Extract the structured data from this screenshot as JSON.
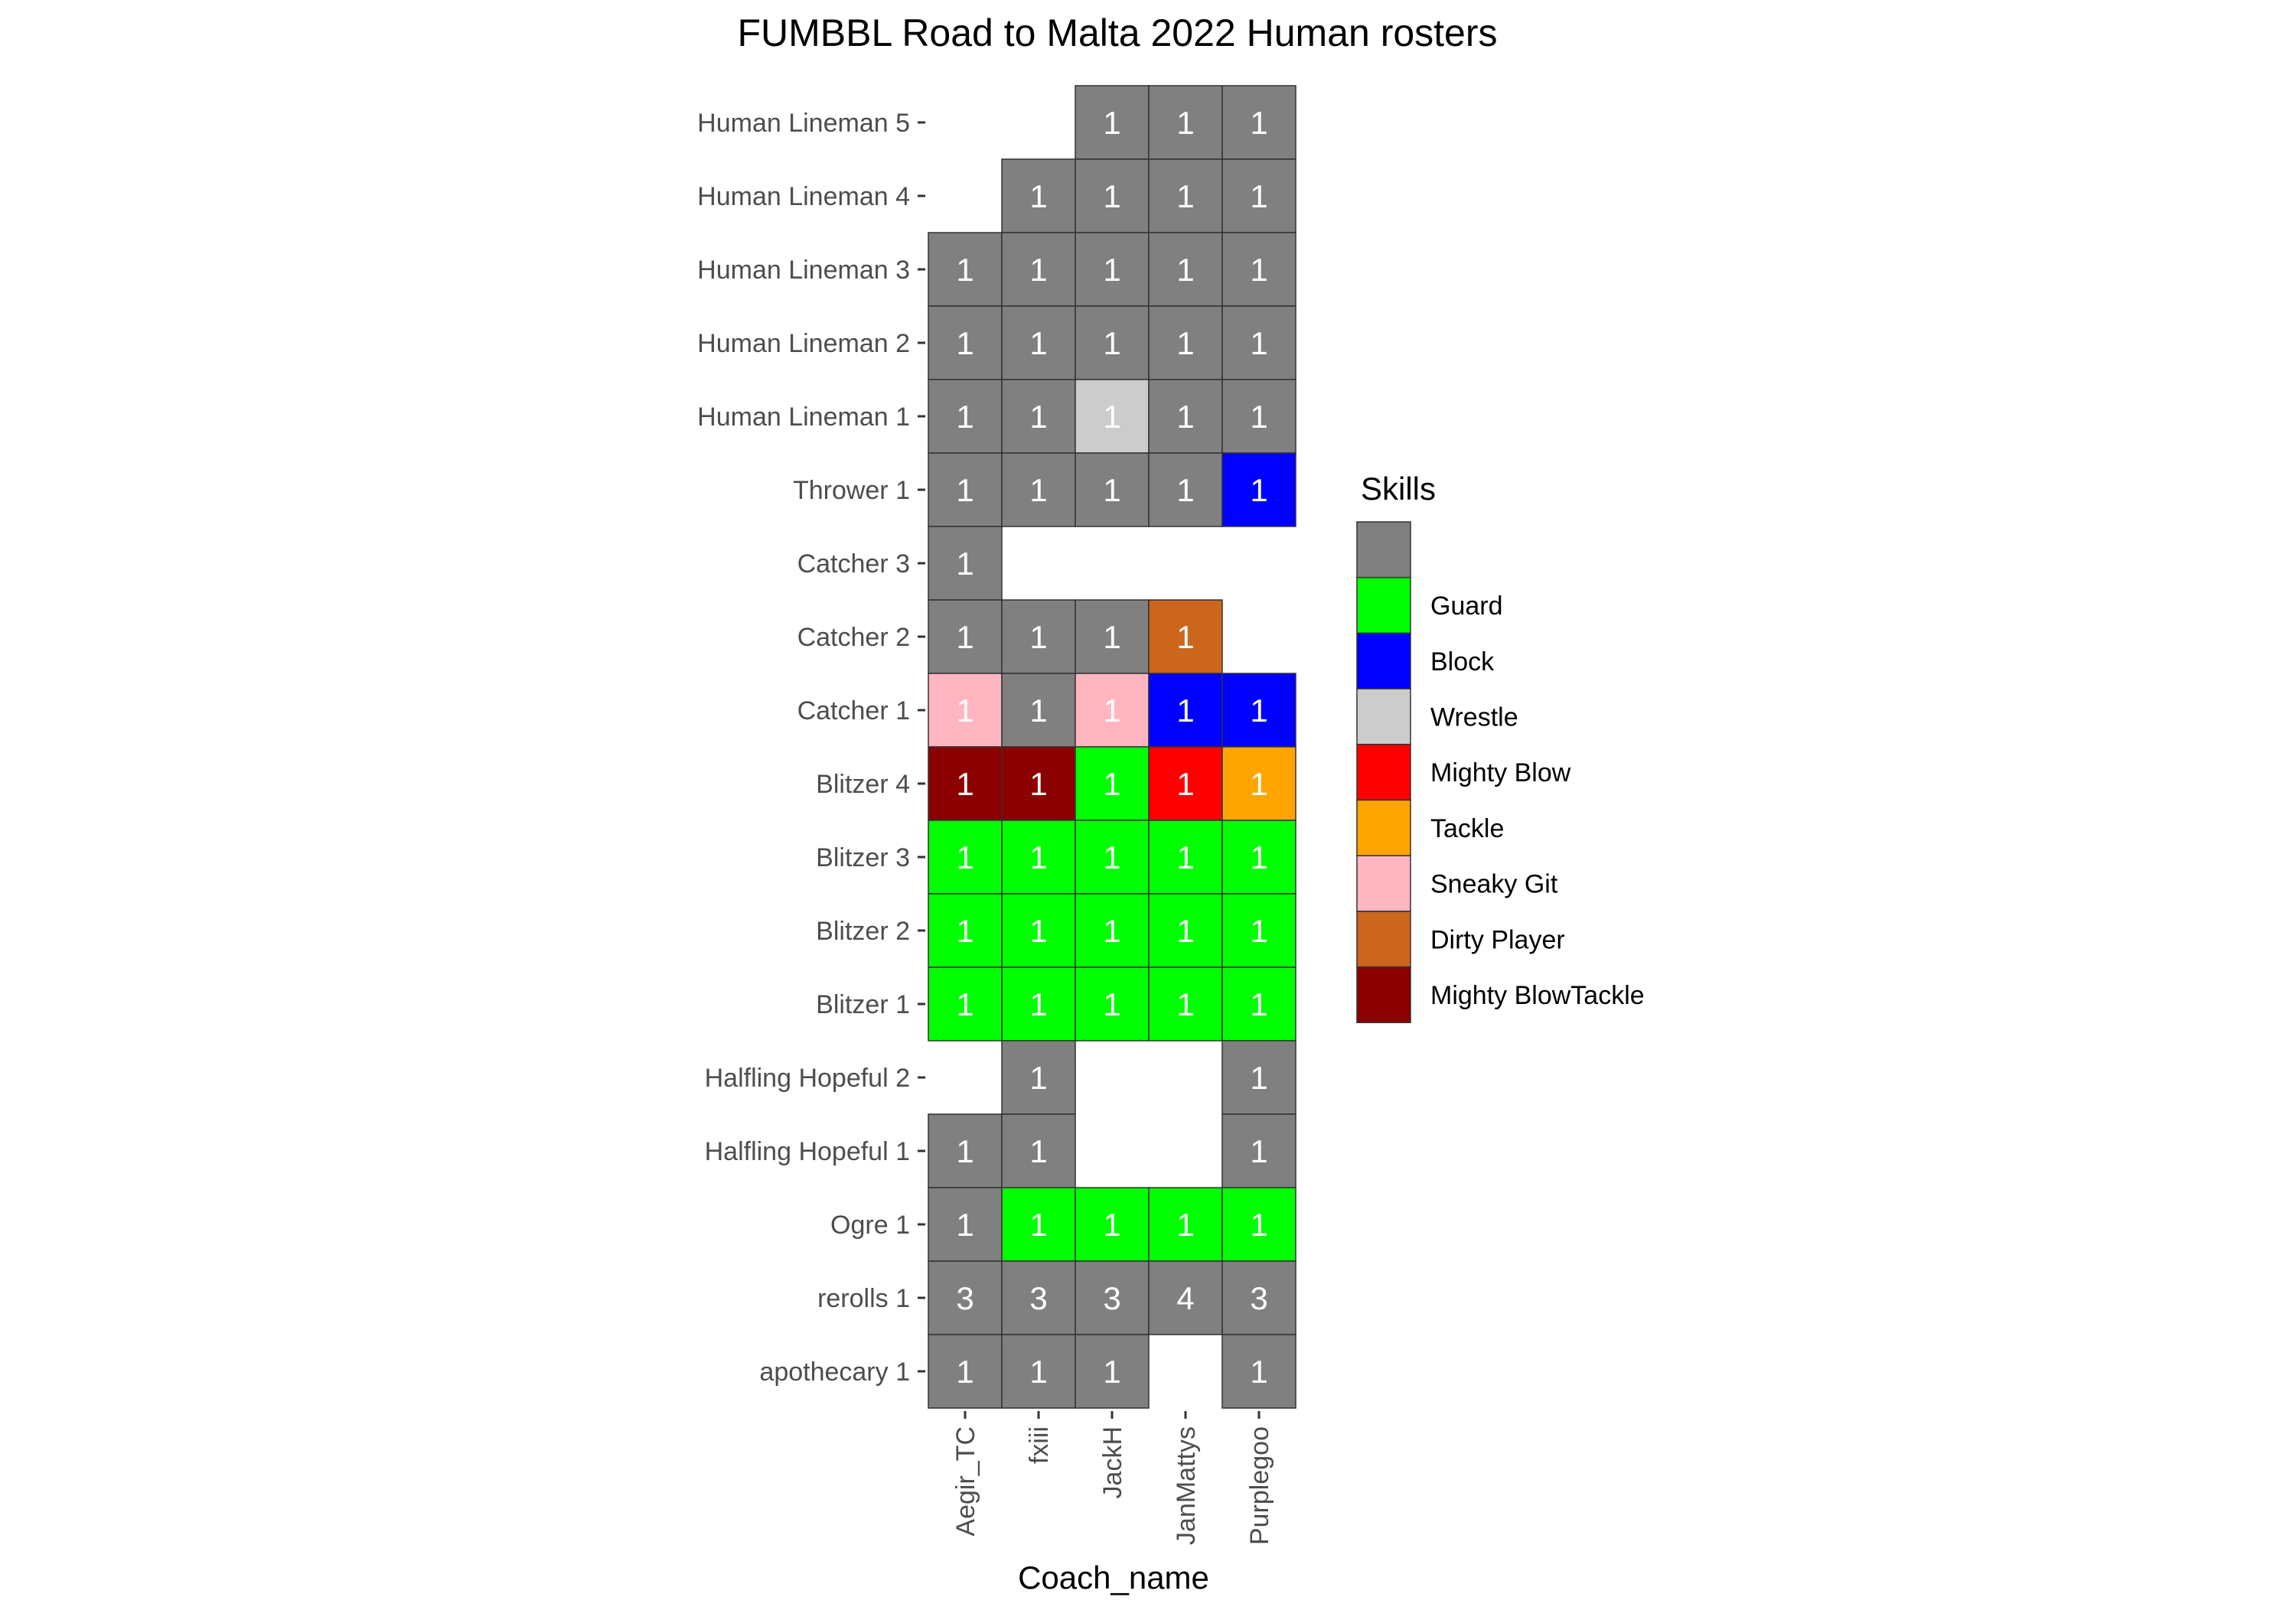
{
  "chart_data": {
    "type": "heatmap",
    "title": "FUMBBL Road to Malta 2022 Human rosters",
    "xlabel": "Coach_name",
    "ylabel": "",
    "x_categories": [
      "Aegir_TC",
      "fxiii",
      "JackH",
      "JanMattys",
      "Purplegoo"
    ],
    "y_categories": [
      "Human Lineman 5",
      "Human Lineman 4",
      "Human Lineman 3",
      "Human Lineman 2",
      "Human Lineman 1",
      "Thrower 1",
      "Catcher 3",
      "Catcher 2",
      "Catcher 1",
      "Blitzer 4",
      "Blitzer 3",
      "Blitzer 2",
      "Blitzer 1",
      "Halfling Hopeful 2",
      "Halfling Hopeful 1",
      "Ogre 1",
      "rerolls 1",
      "apothecary 1"
    ],
    "legend": {
      "title": "Skills",
      "position": "right",
      "entries": [
        {
          "label": "",
          "color": "#808080"
        },
        {
          "label": "Guard",
          "color": "#00ff00"
        },
        {
          "label": "Block",
          "color": "#0000ff"
        },
        {
          "label": "Wrestle",
          "color": "#cccccc"
        },
        {
          "label": "Mighty Blow",
          "color": "#ff0000"
        },
        {
          "label": "Tackle",
          "color": "#ffa500"
        },
        {
          "label": "Sneaky Git",
          "color": "#ffb6c1"
        },
        {
          "label": "Dirty Player",
          "color": "#cd661d"
        },
        {
          "label": "Mighty BlowTackle",
          "color": "#8b0000"
        }
      ]
    },
    "cells": [
      {
        "row": "Human Lineman 5",
        "col": "JackH",
        "value": 1,
        "skill": ""
      },
      {
        "row": "Human Lineman 5",
        "col": "JanMattys",
        "value": 1,
        "skill": ""
      },
      {
        "row": "Human Lineman 5",
        "col": "Purplegoo",
        "value": 1,
        "skill": ""
      },
      {
        "row": "Human Lineman 4",
        "col": "fxiii",
        "value": 1,
        "skill": ""
      },
      {
        "row": "Human Lineman 4",
        "col": "JackH",
        "value": 1,
        "skill": ""
      },
      {
        "row": "Human Lineman 4",
        "col": "JanMattys",
        "value": 1,
        "skill": ""
      },
      {
        "row": "Human Lineman 4",
        "col": "Purplegoo",
        "value": 1,
        "skill": ""
      },
      {
        "row": "Human Lineman 3",
        "col": "Aegir_TC",
        "value": 1,
        "skill": ""
      },
      {
        "row": "Human Lineman 3",
        "col": "fxiii",
        "value": 1,
        "skill": ""
      },
      {
        "row": "Human Lineman 3",
        "col": "JackH",
        "value": 1,
        "skill": ""
      },
      {
        "row": "Human Lineman 3",
        "col": "JanMattys",
        "value": 1,
        "skill": ""
      },
      {
        "row": "Human Lineman 3",
        "col": "Purplegoo",
        "value": 1,
        "skill": ""
      },
      {
        "row": "Human Lineman 2",
        "col": "Aegir_TC",
        "value": 1,
        "skill": ""
      },
      {
        "row": "Human Lineman 2",
        "col": "fxiii",
        "value": 1,
        "skill": ""
      },
      {
        "row": "Human Lineman 2",
        "col": "JackH",
        "value": 1,
        "skill": ""
      },
      {
        "row": "Human Lineman 2",
        "col": "JanMattys",
        "value": 1,
        "skill": ""
      },
      {
        "row": "Human Lineman 2",
        "col": "Purplegoo",
        "value": 1,
        "skill": ""
      },
      {
        "row": "Human Lineman 1",
        "col": "Aegir_TC",
        "value": 1,
        "skill": ""
      },
      {
        "row": "Human Lineman 1",
        "col": "fxiii",
        "value": 1,
        "skill": ""
      },
      {
        "row": "Human Lineman 1",
        "col": "JackH",
        "value": 1,
        "skill": "Wrestle"
      },
      {
        "row": "Human Lineman 1",
        "col": "JanMattys",
        "value": 1,
        "skill": ""
      },
      {
        "row": "Human Lineman 1",
        "col": "Purplegoo",
        "value": 1,
        "skill": ""
      },
      {
        "row": "Thrower 1",
        "col": "Aegir_TC",
        "value": 1,
        "skill": ""
      },
      {
        "row": "Thrower 1",
        "col": "fxiii",
        "value": 1,
        "skill": ""
      },
      {
        "row": "Thrower 1",
        "col": "JackH",
        "value": 1,
        "skill": ""
      },
      {
        "row": "Thrower 1",
        "col": "JanMattys",
        "value": 1,
        "skill": ""
      },
      {
        "row": "Thrower 1",
        "col": "Purplegoo",
        "value": 1,
        "skill": "Block"
      },
      {
        "row": "Catcher 3",
        "col": "Aegir_TC",
        "value": 1,
        "skill": ""
      },
      {
        "row": "Catcher 2",
        "col": "Aegir_TC",
        "value": 1,
        "skill": ""
      },
      {
        "row": "Catcher 2",
        "col": "fxiii",
        "value": 1,
        "skill": ""
      },
      {
        "row": "Catcher 2",
        "col": "JackH",
        "value": 1,
        "skill": ""
      },
      {
        "row": "Catcher 2",
        "col": "JanMattys",
        "value": 1,
        "skill": "Dirty Player"
      },
      {
        "row": "Catcher 1",
        "col": "Aegir_TC",
        "value": 1,
        "skill": "Sneaky Git"
      },
      {
        "row": "Catcher 1",
        "col": "fxiii",
        "value": 1,
        "skill": ""
      },
      {
        "row": "Catcher 1",
        "col": "JackH",
        "value": 1,
        "skill": "Sneaky Git"
      },
      {
        "row": "Catcher 1",
        "col": "JanMattys",
        "value": 1,
        "skill": "Block"
      },
      {
        "row": "Catcher 1",
        "col": "Purplegoo",
        "value": 1,
        "skill": "Block"
      },
      {
        "row": "Blitzer 4",
        "col": "Aegir_TC",
        "value": 1,
        "skill": "Mighty BlowTackle"
      },
      {
        "row": "Blitzer 4",
        "col": "fxiii",
        "value": 1,
        "skill": "Mighty BlowTackle"
      },
      {
        "row": "Blitzer 4",
        "col": "JackH",
        "value": 1,
        "skill": "Guard"
      },
      {
        "row": "Blitzer 4",
        "col": "JanMattys",
        "value": 1,
        "skill": "Mighty Blow"
      },
      {
        "row": "Blitzer 4",
        "col": "Purplegoo",
        "value": 1,
        "skill": "Tackle"
      },
      {
        "row": "Blitzer 3",
        "col": "Aegir_TC",
        "value": 1,
        "skill": "Guard"
      },
      {
        "row": "Blitzer 3",
        "col": "fxiii",
        "value": 1,
        "skill": "Guard"
      },
      {
        "row": "Blitzer 3",
        "col": "JackH",
        "value": 1,
        "skill": "Guard"
      },
      {
        "row": "Blitzer 3",
        "col": "JanMattys",
        "value": 1,
        "skill": "Guard"
      },
      {
        "row": "Blitzer 3",
        "col": "Purplegoo",
        "value": 1,
        "skill": "Guard"
      },
      {
        "row": "Blitzer 2",
        "col": "Aegir_TC",
        "value": 1,
        "skill": "Guard"
      },
      {
        "row": "Blitzer 2",
        "col": "fxiii",
        "value": 1,
        "skill": "Guard"
      },
      {
        "row": "Blitzer 2",
        "col": "JackH",
        "value": 1,
        "skill": "Guard"
      },
      {
        "row": "Blitzer 2",
        "col": "JanMattys",
        "value": 1,
        "skill": "Guard"
      },
      {
        "row": "Blitzer 2",
        "col": "Purplegoo",
        "value": 1,
        "skill": "Guard"
      },
      {
        "row": "Blitzer 1",
        "col": "Aegir_TC",
        "value": 1,
        "skill": "Guard"
      },
      {
        "row": "Blitzer 1",
        "col": "fxiii",
        "value": 1,
        "skill": "Guard"
      },
      {
        "row": "Blitzer 1",
        "col": "JackH",
        "value": 1,
        "skill": "Guard"
      },
      {
        "row": "Blitzer 1",
        "col": "JanMattys",
        "value": 1,
        "skill": "Guard"
      },
      {
        "row": "Blitzer 1",
        "col": "Purplegoo",
        "value": 1,
        "skill": "Guard"
      },
      {
        "row": "Halfling Hopeful 2",
        "col": "fxiii",
        "value": 1,
        "skill": ""
      },
      {
        "row": "Halfling Hopeful 2",
        "col": "Purplegoo",
        "value": 1,
        "skill": ""
      },
      {
        "row": "Halfling Hopeful 1",
        "col": "Aegir_TC",
        "value": 1,
        "skill": ""
      },
      {
        "row": "Halfling Hopeful 1",
        "col": "fxiii",
        "value": 1,
        "skill": ""
      },
      {
        "row": "Halfling Hopeful 1",
        "col": "Purplegoo",
        "value": 1,
        "skill": ""
      },
      {
        "row": "Ogre 1",
        "col": "Aegir_TC",
        "value": 1,
        "skill": ""
      },
      {
        "row": "Ogre 1",
        "col": "fxiii",
        "value": 1,
        "skill": "Guard"
      },
      {
        "row": "Ogre 1",
        "col": "JackH",
        "value": 1,
        "skill": "Guard"
      },
      {
        "row": "Ogre 1",
        "col": "JanMattys",
        "value": 1,
        "skill": "Guard"
      },
      {
        "row": "Ogre 1",
        "col": "Purplegoo",
        "value": 1,
        "skill": "Guard"
      },
      {
        "row": "rerolls 1",
        "col": "Aegir_TC",
        "value": 3,
        "skill": ""
      },
      {
        "row": "rerolls 1",
        "col": "fxiii",
        "value": 3,
        "skill": ""
      },
      {
        "row": "rerolls 1",
        "col": "JackH",
        "value": 3,
        "skill": ""
      },
      {
        "row": "rerolls 1",
        "col": "JanMattys",
        "value": 4,
        "skill": ""
      },
      {
        "row": "rerolls 1",
        "col": "Purplegoo",
        "value": 3,
        "skill": ""
      },
      {
        "row": "apothecary 1",
        "col": "Aegir_TC",
        "value": 1,
        "skill": ""
      },
      {
        "row": "apothecary 1",
        "col": "fxiii",
        "value": 1,
        "skill": ""
      },
      {
        "row": "apothecary 1",
        "col": "JackH",
        "value": 1,
        "skill": ""
      },
      {
        "row": "apothecary 1",
        "col": "Purplegoo",
        "value": 1,
        "skill": ""
      }
    ]
  }
}
